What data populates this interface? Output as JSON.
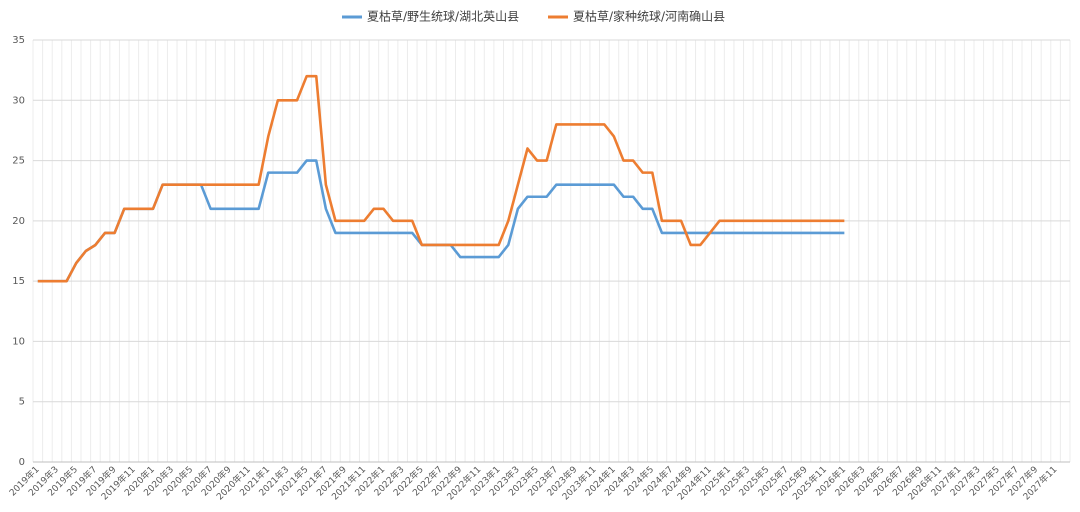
{
  "chart_data": {
    "type": "line",
    "categories": [
      "2019年1",
      null,
      "2019年3",
      null,
      "2019年5",
      null,
      "2019年7",
      null,
      "2019年9",
      null,
      "2019年11",
      null,
      "2020年1",
      null,
      "2020年3",
      null,
      "2020年5",
      null,
      "2020年7",
      null,
      "2020年9",
      null,
      "2020年11",
      null,
      "2021年1",
      null,
      "2021年3",
      null,
      "2021年5",
      null,
      "2021年7",
      null,
      "2021年9",
      null,
      "2021年11",
      null,
      "2022年1",
      null,
      "2022年3",
      null,
      "2022年5",
      null,
      "2022年7",
      null,
      "2022年9",
      null,
      "2022年11",
      null,
      "2023年1",
      null,
      "2023年3",
      null,
      "2023年5",
      null,
      "2023年7",
      null,
      "2023年9",
      null,
      "2023年11",
      null,
      "2024年1",
      null,
      "2024年3",
      null,
      "2024年5",
      null,
      "2024年7",
      null,
      "2024年9",
      null,
      "2024年11",
      null,
      "2025年1",
      null,
      "2025年3",
      null,
      "2025年5",
      null,
      "2025年7",
      null,
      "2025年9",
      null,
      "2025年11",
      null,
      "2026年1",
      null,
      "2026年3",
      null,
      "2026年5",
      null,
      "2026年7",
      null,
      "2026年9",
      null,
      "2026年11",
      null,
      "2027年1",
      null,
      "2027年3",
      null,
      "2027年5",
      null,
      "2027年7",
      null,
      "2027年9",
      null,
      "2027年11",
      null
    ],
    "series": [
      {
        "name": "夏枯草/野生统球/湖北英山县",
        "color": "#5b9bd5",
        "values": [
          15,
          15,
          15,
          15,
          16.5,
          17.5,
          18,
          19,
          19,
          21,
          21,
          21,
          21,
          23,
          23,
          23,
          23,
          23,
          21,
          21,
          21,
          21,
          21,
          21,
          24,
          24,
          24,
          24,
          25,
          25,
          21,
          19,
          19,
          19,
          19,
          19,
          19,
          19,
          19,
          19,
          18,
          18,
          18,
          18,
          17,
          17,
          17,
          17,
          17,
          18,
          21,
          22,
          22,
          22,
          23,
          23,
          23,
          23,
          23,
          23,
          23,
          22,
          22,
          21,
          21,
          19,
          19,
          19,
          19,
          19,
          19,
          19,
          19,
          19,
          19,
          19,
          19,
          19,
          19,
          19,
          19,
          19,
          19,
          19,
          19,
          null,
          null,
          null,
          null,
          null,
          null,
          null,
          null,
          null,
          null,
          null,
          null,
          null,
          null,
          null,
          null,
          null,
          null,
          null,
          null,
          null,
          null,
          null
        ]
      },
      {
        "name": "夏枯草/家种统球/河南确山县",
        "color": "#ed7d31",
        "values": [
          15,
          15,
          15,
          15,
          16.5,
          17.5,
          18,
          19,
          19,
          21,
          21,
          21,
          21,
          23,
          23,
          23,
          23,
          23,
          23,
          23,
          23,
          23,
          23,
          23,
          27,
          30,
          30,
          30,
          32,
          32,
          23,
          20,
          20,
          20,
          20,
          21,
          21,
          20,
          20,
          20,
          18,
          18,
          18,
          18,
          18,
          18,
          18,
          18,
          18,
          20,
          23,
          26,
          25,
          25,
          28,
          28,
          28,
          28,
          28,
          28,
          27,
          25,
          25,
          24,
          24,
          20,
          20,
          20,
          18,
          18,
          19,
          20,
          20,
          20,
          20,
          20,
          20,
          20,
          20,
          20,
          20,
          20,
          20,
          20,
          20,
          null,
          null,
          null,
          null,
          null,
          null,
          null,
          null,
          null,
          null,
          null,
          null,
          null,
          null,
          null,
          null,
          null,
          null,
          null,
          null,
          null,
          null,
          null
        ]
      }
    ],
    "ylim": [
      0,
      35
    ],
    "yticks": [
      0,
      5,
      10,
      15,
      20,
      25,
      30,
      35
    ],
    "grid": true,
    "legend": "top"
  }
}
